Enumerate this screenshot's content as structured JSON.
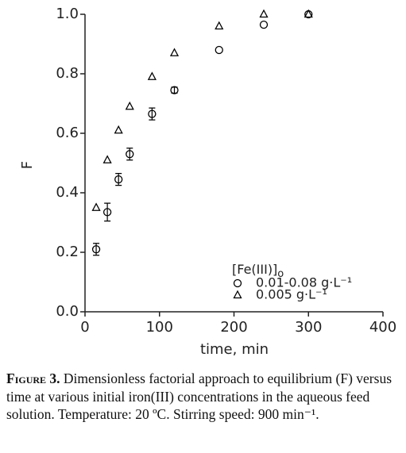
{
  "chart_data": {
    "type": "scatter",
    "x_label": "time, min",
    "y_label": "F",
    "legend_title": {
      "text": "[Fe(III)]",
      "subscript": "o"
    },
    "series": [
      {
        "name": "0.01-0.08 g·L⁻¹",
        "marker": "circle",
        "color": "#000000",
        "x": [
          15,
          30,
          45,
          60,
          90,
          120,
          180,
          240,
          300
        ],
        "values": [
          0.21,
          0.335,
          0.445,
          0.53,
          0.665,
          0.745,
          0.88,
          0.965,
          1.0
        ],
        "errors": [
          0.02,
          0.03,
          0.02,
          0.02,
          0.02,
          0.01,
          null,
          null,
          null
        ]
      },
      {
        "name": "0.005 g·L⁻¹",
        "marker": "triangle",
        "color": "#000000",
        "x": [
          15,
          30,
          45,
          60,
          90,
          120,
          180,
          240,
          300
        ],
        "values": [
          0.35,
          0.51,
          0.61,
          0.69,
          0.79,
          0.87,
          0.96,
          1.0,
          1.0
        ]
      }
    ],
    "xlim": [
      0,
      400
    ],
    "xticks": [
      0,
      100,
      200,
      300,
      400
    ],
    "ylim": [
      0,
      1
    ],
    "yticks": [
      {
        "value": 0,
        "label": "0.0"
      },
      0.2,
      0.4,
      0.6,
      0.8,
      {
        "value": 1,
        "label": "1.0"
      }
    ],
    "legend_position": "lower right",
    "caption_label": "Figure 3.",
    "caption": "Dimensionless factorial approach to equilibrium (F) versus time at various initial iron(III) concentrations in the aqueous feed solution. Temperature: 20 ºC. Stirring speed: 900 min⁻¹."
  }
}
